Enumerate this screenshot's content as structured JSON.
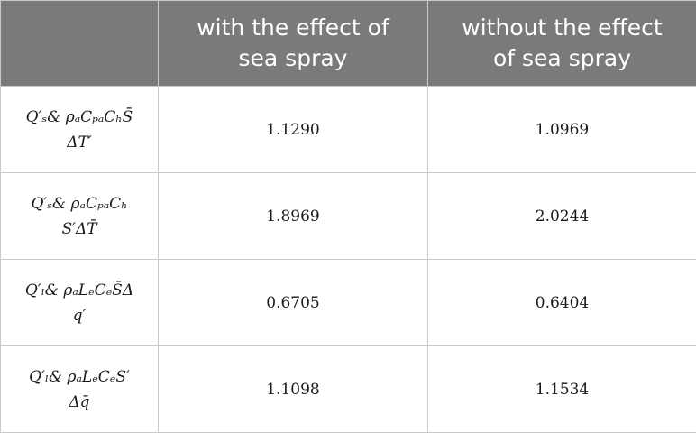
{
  "table": {
    "headers": [
      "",
      "with the effect of sea spray",
      "without the effect of sea spray"
    ],
    "rows": [
      {
        "label_line1": "Q′ₛ& ρₐCₚₐCₕS̄",
        "label_line2": "ΔT′",
        "with": "1.1290",
        "without": "1.0969"
      },
      {
        "label_line1": "Q′ₛ& ρₐCₚₐCₕ",
        "label_line2": "S′ΔT̄",
        "with": "1.8969",
        "without": "2.0244"
      },
      {
        "label_line1": "Q′ₗ& ρₐLₑCₑS̄Δ",
        "label_line2": "q′",
        "with": "0.6705",
        "without": "0.6404"
      },
      {
        "label_line1": "Q′ₗ& ρₐLₑCₑS′",
        "label_line2": "Δq̄",
        "with": "1.1098",
        "without": "1.1534"
      }
    ]
  }
}
